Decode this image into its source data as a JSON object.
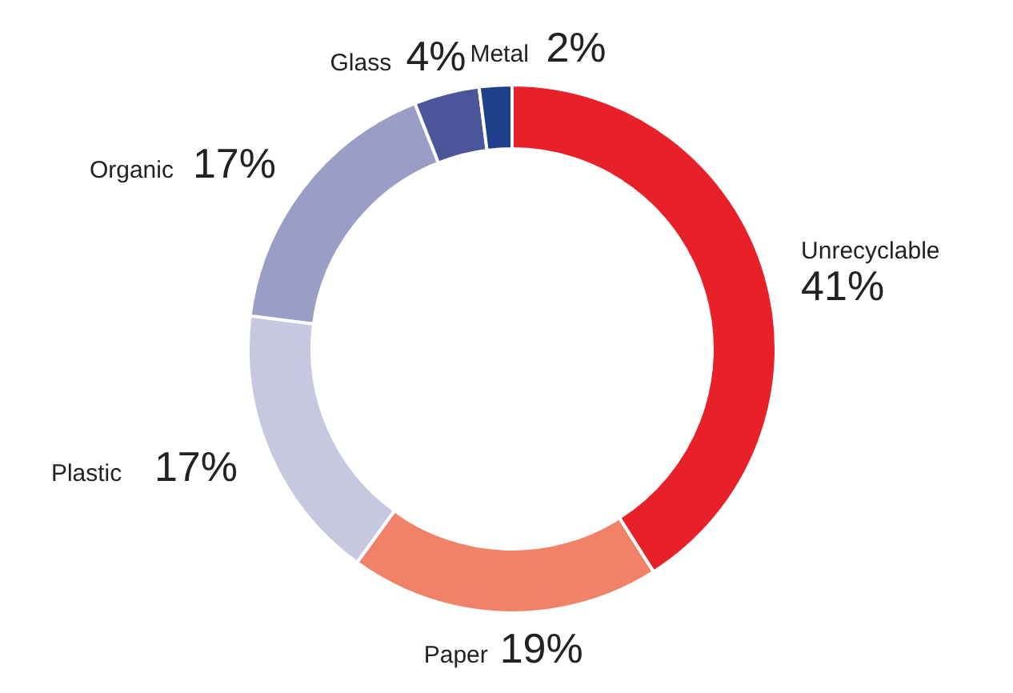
{
  "chart_data": {
    "type": "donut",
    "categories": [
      "Unrecyclable",
      "Paper",
      "Plastic",
      "Organic",
      "Glass",
      "Metal"
    ],
    "values": [
      41,
      19,
      17,
      17,
      4,
      2
    ],
    "value_labels": [
      "41%",
      "19%",
      "17%",
      "17%",
      "4%",
      "2%"
    ],
    "colors": [
      "#e8202a",
      "#f0826a",
      "#c5c8df",
      "#9a9dc6",
      "#4a5699",
      "#1e3f8a"
    ]
  }
}
